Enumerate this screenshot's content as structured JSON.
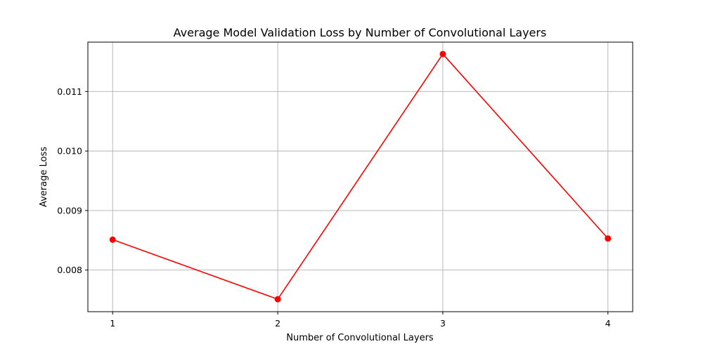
{
  "chart_data": {
    "type": "line",
    "title": "Average Model Validation Loss by Number of Convolutional Layers",
    "xlabel": "Number of Convolutional Layers",
    "ylabel": "Average Loss",
    "x": [
      1,
      2,
      3,
      4
    ],
    "x_ticks": [
      "1",
      "2",
      "3",
      "4"
    ],
    "xlim": [
      0.85,
      4.15
    ],
    "y_ticks": [
      0.008,
      0.009,
      0.01,
      0.011
    ],
    "y_tick_labels": [
      "0.008",
      "0.009",
      "0.010",
      "0.011"
    ],
    "ylim": [
      0.0073,
      0.01183
    ],
    "grid": true,
    "series": [
      {
        "values": [
          0.00851,
          0.00751,
          0.01163,
          0.00853
        ],
        "color": "#ff0000",
        "marker": "circle"
      }
    ]
  }
}
